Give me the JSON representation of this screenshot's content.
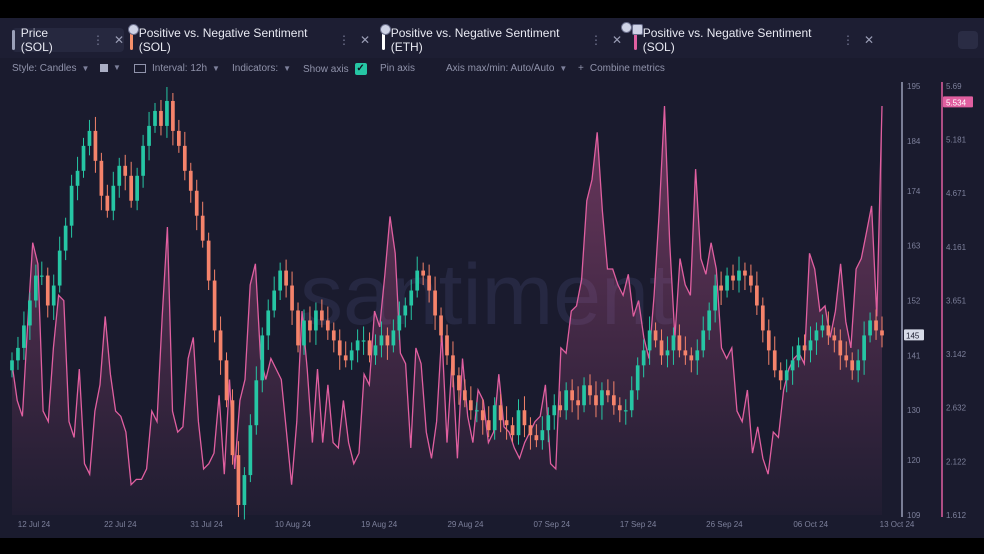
{
  "tabs": [
    {
      "label": "Price (SOL)",
      "color": "#9aa0b8",
      "active": true
    },
    {
      "label": "Positive vs. Negative Sentiment (SOL)",
      "color": "#f5906b"
    },
    {
      "label": "Positive vs. Negative Sentiment (ETH)",
      "color": "#ffffff"
    },
    {
      "label": "Positive vs. Negative Sentiment (SOL)",
      "color": "#e05fa0"
    }
  ],
  "toolbar": {
    "style_label": "Style: Candles",
    "interval_label": "Interval: 12h",
    "indicators_label": "Indicators:",
    "show_axis_label": "Show axis",
    "pin_axis_label": "Pin axis",
    "axis_minmax_label": "Axis max/min: Auto/Auto",
    "combine_label": "Combine metrics",
    "plus_glyph": "+"
  },
  "watermark": "santiment",
  "colors": {
    "up": "#26c6a4",
    "down": "#f5836b",
    "sentiment": "#e05fa0",
    "background": "#1a1b2e"
  },
  "chart_data": {
    "type": "candlestick+line",
    "x_ticks": [
      "12 Jul 24",
      "22 Jul 24",
      "31 Jul 24",
      "10 Aug 24",
      "19 Aug 24",
      "29 Aug 24",
      "07 Sep 24",
      "17 Sep 24",
      "26 Sep 24",
      "06 Oct 24",
      "13 Oct 24"
    ],
    "price_axis": {
      "ticks": [
        195,
        184,
        174,
        163,
        152,
        141,
        130,
        120,
        109
      ],
      "range": [
        109,
        195
      ],
      "current_value": "145"
    },
    "sentiment_axis": {
      "ticks": [
        "5.69",
        "5.181",
        "4.671",
        "4.161",
        "3.651",
        "3.142",
        "2.632",
        "2.122",
        "1.612"
      ],
      "range": [
        1.612,
        5.69
      ],
      "current_value": "5.534"
    },
    "series": [
      {
        "name": "Price (SOL)",
        "type": "candles",
        "close": [
          140,
          142.5,
          147,
          152,
          157,
          157,
          151,
          155,
          162,
          167,
          175,
          178,
          183,
          186,
          180,
          173,
          170,
          175,
          179,
          177,
          172,
          177,
          183,
          187,
          190,
          187,
          192,
          186,
          183,
          178,
          174,
          169,
          164,
          156,
          146,
          140,
          132,
          121,
          111,
          117,
          127,
          136,
          145,
          150,
          154,
          158,
          155,
          150,
          143,
          148,
          146,
          150,
          148,
          146,
          144,
          141,
          140,
          142,
          144,
          144,
          141,
          143,
          145,
          143,
          146,
          149,
          151,
          154,
          158,
          157,
          154,
          149,
          145,
          141,
          137,
          134,
          132,
          130,
          130,
          128,
          126,
          131,
          128,
          127,
          125,
          130,
          127,
          125,
          124,
          126,
          129,
          131,
          130,
          134,
          132,
          131,
          135,
          133,
          131,
          134,
          133,
          131,
          130,
          130,
          134,
          139,
          142,
          146,
          144,
          141,
          142,
          145,
          142,
          141,
          140,
          142,
          146,
          150,
          155,
          154,
          157,
          156,
          158,
          157,
          155,
          151,
          146,
          142,
          138,
          136,
          138,
          140,
          143,
          142,
          144,
          146,
          147,
          145,
          144,
          141,
          140,
          138,
          140,
          145,
          148,
          146,
          145
        ],
        "open_first": 138
      },
      {
        "name": "Positive vs. Negative Sentiment (SOL)",
        "type": "area-line",
        "values": [
          3.05,
          2.7,
          2.55,
          3.4,
          4.2,
          4.0,
          2.6,
          2.5,
          3.2,
          3.7,
          3.65,
          2.5,
          2.35,
          3.0,
          2.1,
          2.0,
          2.6,
          2.85,
          3.5,
          2.95,
          2.6,
          2.55,
          2.4,
          1.9,
          1.95,
          1.95,
          2.05,
          2.6,
          2.5,
          3.5,
          4.35,
          2.6,
          2.4,
          2.45,
          3.1,
          3.3,
          2.5,
          2.05,
          2.1,
          2.2,
          2.75,
          2.0,
          2.9,
          2.05,
          2.7,
          2.9,
          3.8,
          4.0,
          3.1,
          2.9,
          3.1,
          3.0,
          2.9,
          2.4,
          1.9,
          2.5,
          3.55,
          3.0,
          2.3,
          3.0,
          2.3,
          2.85,
          2.3,
          2.25,
          2.7,
          2.3,
          2.1,
          2.2,
          2.95,
          2.85,
          3.55,
          3.4,
          3.9,
          4.45,
          4.1,
          3.15,
          3.05,
          2.25,
          3.2,
          3.05,
          2.4,
          2.15,
          2.5,
          3.35,
          2.3,
          3.1,
          2.15,
          3.1,
          2.55,
          2.3,
          2.8,
          2.7,
          2.3,
          2.4,
          2.95,
          2.45,
          2.4,
          2.25,
          2.15,
          2.3,
          2.4,
          2.5,
          2.55,
          2.85,
          2.1,
          2.05,
          3.2,
          3.15,
          3.55,
          3.6,
          3.85,
          4.6,
          4.8,
          5.25,
          4.5,
          3.95,
          3.95,
          3.8,
          3.7,
          3.9,
          3.5,
          3.65,
          3.3,
          3.1,
          3.7,
          4.5,
          5.5,
          4.2,
          3.3,
          4.05,
          3.8,
          3.7,
          4.9,
          4.05,
          3.9,
          4.2,
          3.95,
          3.2,
          3.1,
          3.2,
          2.6,
          2.5,
          2.8,
          2.2,
          2.45,
          2.15,
          2.0,
          2.4,
          2.35,
          2.8,
          3.0,
          3.1,
          3.15,
          3.05,
          4.1,
          3.95,
          3.55,
          3.6,
          3.3,
          3.55,
          4.0,
          3.45,
          3.2,
          3.95,
          4.05,
          4.3,
          4.55,
          3.5,
          5.5
        ]
      }
    ]
  }
}
